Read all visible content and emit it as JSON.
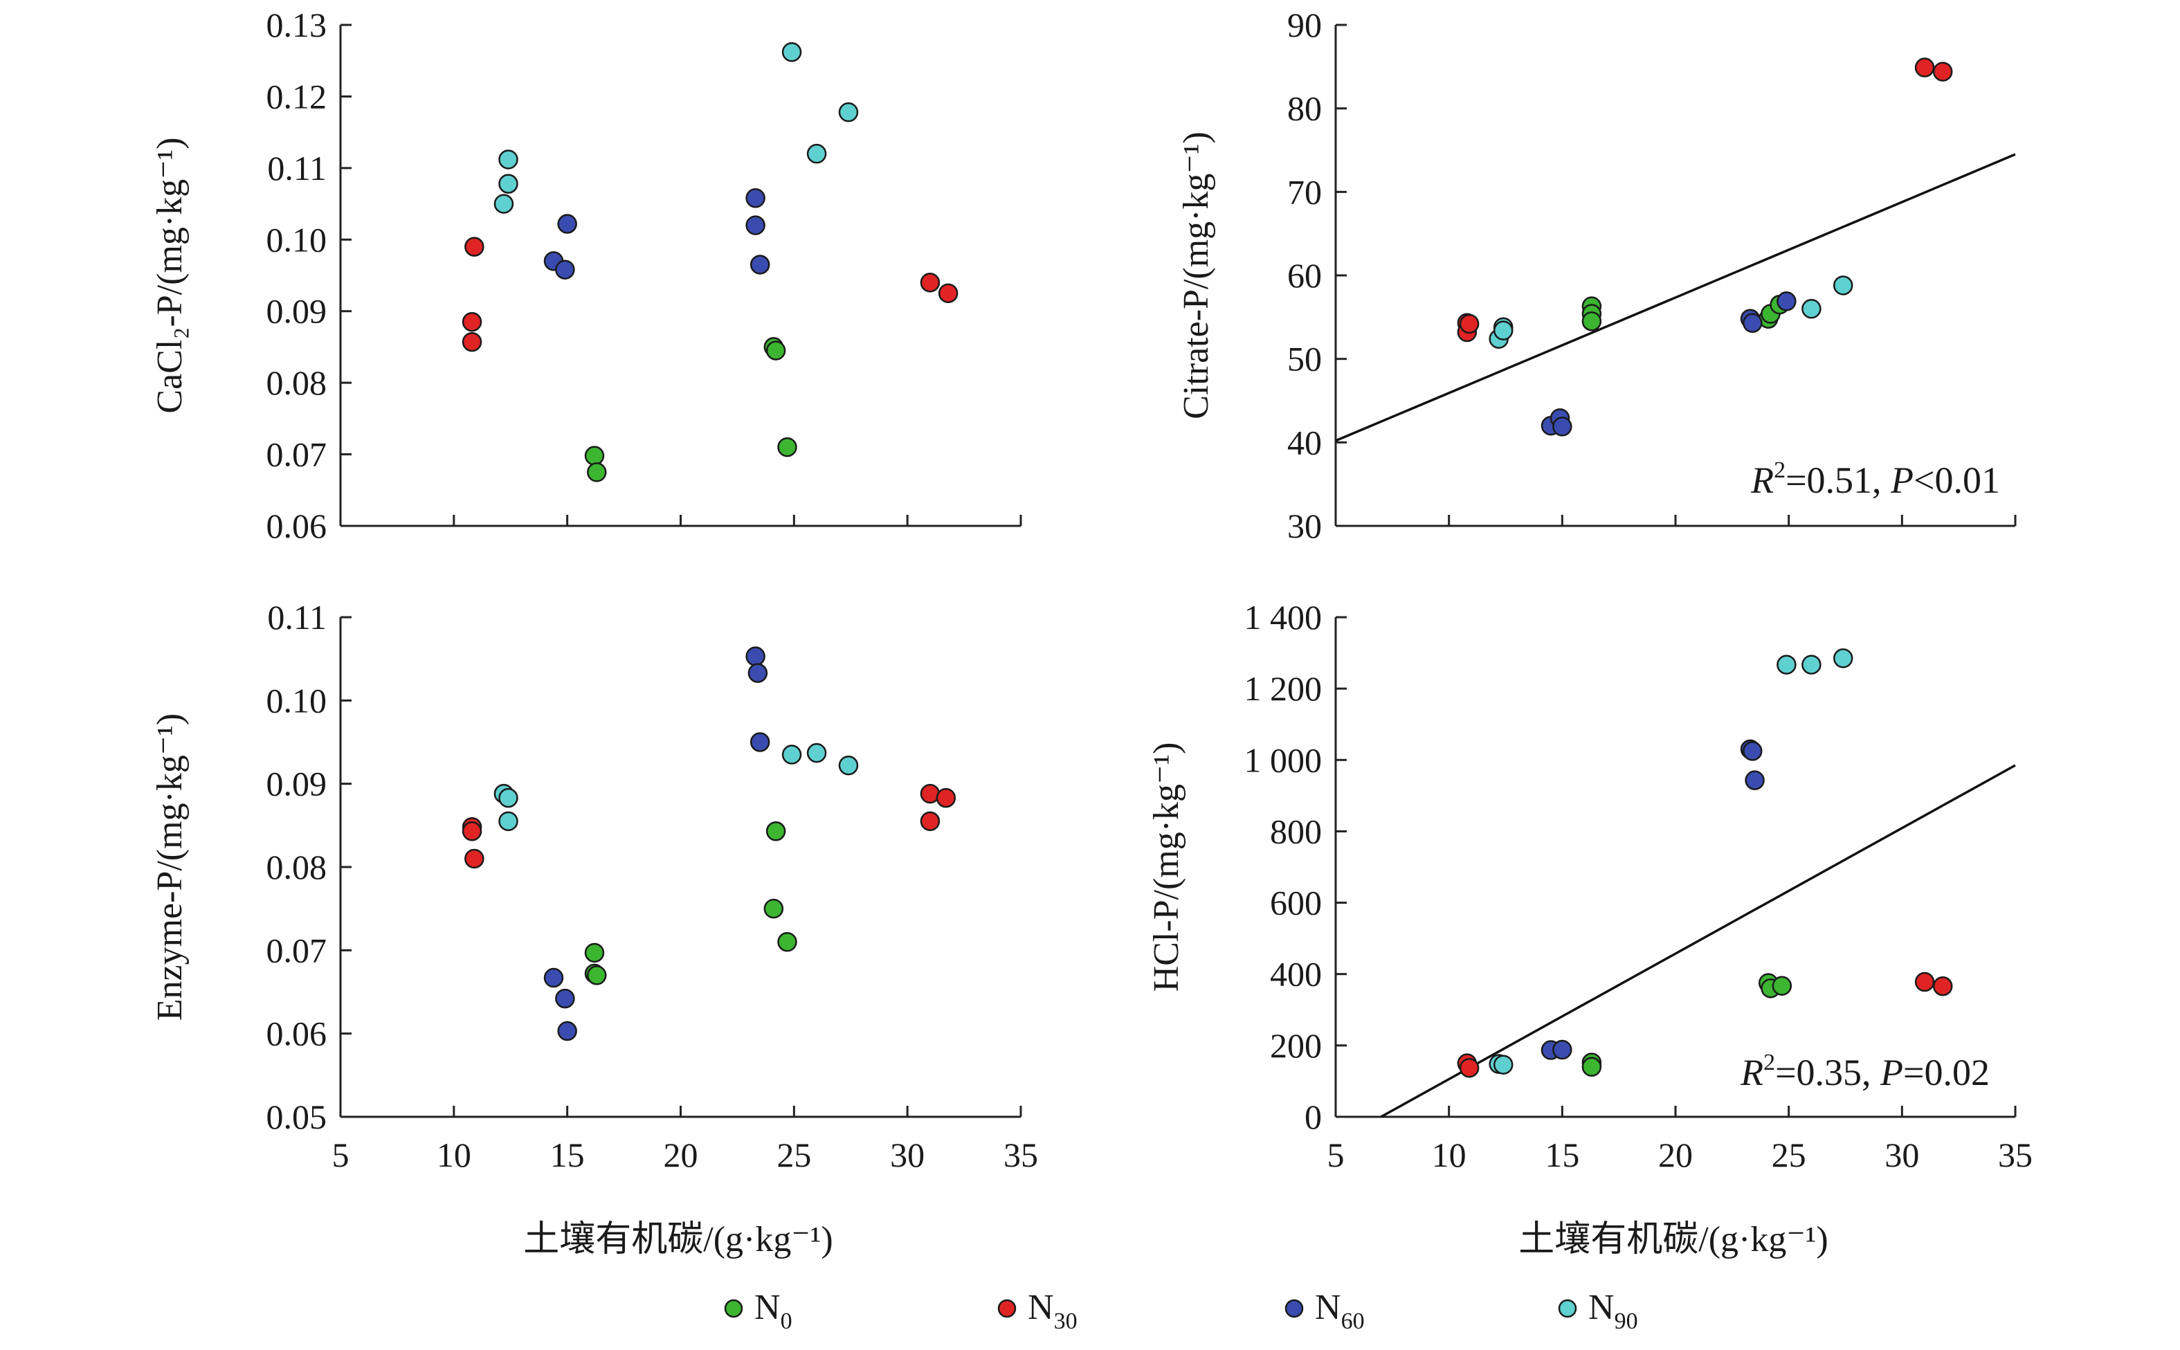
{
  "colors": {
    "N0": "#3cb531",
    "N30": "#e02424",
    "N60": "#3a4cb0",
    "N90": "#5fd0d0"
  },
  "legend": [
    {
      "key": "N0",
      "base": "N",
      "sub": "0"
    },
    {
      "key": "N30",
      "base": "N",
      "sub": "30"
    },
    {
      "key": "N60",
      "base": "N",
      "sub": "60"
    },
    {
      "key": "N90",
      "base": "N",
      "sub": "90"
    }
  ],
  "shared_xlabel": "土壤有机碳/(g·kg⁻¹)",
  "chart_data": [
    {
      "id": "cacl2",
      "type": "scatter",
      "ylabel": "CaCl₂-P/(mg·kg⁻¹)",
      "xlim": [
        5,
        35
      ],
      "ylim": [
        0.06,
        0.13
      ],
      "xticks": [
        5,
        10,
        15,
        20,
        25,
        30,
        35
      ],
      "xtick_labels": [
        "5",
        "10",
        "15",
        "20",
        "25",
        "30",
        "35"
      ],
      "yticks": [
        0.06,
        0.07,
        0.08,
        0.09,
        0.1,
        0.11,
        0.12,
        0.13
      ],
      "ytick_labels": [
        "0.06",
        "0.07",
        "0.08",
        "0.09",
        "0.10",
        "0.11",
        "0.12",
        "0.13"
      ],
      "show_x_tick_labels": false,
      "show_x_title": false,
      "series": [
        {
          "key": "N0",
          "points": [
            [
              16.2,
              0.0698
            ],
            [
              16.3,
              0.0675
            ],
            [
              24.1,
              0.085
            ],
            [
              24.2,
              0.0845
            ],
            [
              24.7,
              0.071
            ]
          ]
        },
        {
          "key": "N30",
          "points": [
            [
              10.8,
              0.0885
            ],
            [
              10.8,
              0.0857
            ],
            [
              10.9,
              0.099
            ],
            [
              31.0,
              0.094
            ],
            [
              31.8,
              0.0925
            ]
          ]
        },
        {
          "key": "N60",
          "points": [
            [
              14.4,
              0.097
            ],
            [
              14.9,
              0.0958
            ],
            [
              15.0,
              0.1022
            ],
            [
              23.3,
              0.1058
            ],
            [
              23.3,
              0.102
            ],
            [
              23.5,
              0.0965
            ]
          ]
        },
        {
          "key": "N90",
          "points": [
            [
              12.2,
              0.105
            ],
            [
              12.4,
              0.1078
            ],
            [
              12.4,
              0.1112
            ],
            [
              24.9,
              0.1262
            ],
            [
              26.0,
              0.112
            ],
            [
              27.4,
              0.1178
            ]
          ]
        }
      ]
    },
    {
      "id": "citrate",
      "type": "scatter",
      "ylabel": "Citrate-P/(mg·kg⁻¹)",
      "xlim": [
        5,
        35
      ],
      "ylim": [
        30,
        90
      ],
      "xticks": [
        5,
        10,
        15,
        20,
        25,
        30,
        35
      ],
      "xtick_labels": [
        "5",
        "10",
        "15",
        "20",
        "25",
        "30",
        "35"
      ],
      "yticks": [
        30,
        40,
        50,
        60,
        70,
        80,
        90
      ],
      "ytick_labels": [
        "30",
        "40",
        "50",
        "60",
        "70",
        "80",
        "90"
      ],
      "show_x_tick_labels": false,
      "show_x_title": false,
      "fit": {
        "x": [
          5,
          35
        ],
        "y": [
          40.2,
          74.5
        ]
      },
      "stat": {
        "r": "R",
        "r_exp": "2",
        "text1": "=0.51, ",
        "p": "P",
        "text2": "<0.01"
      },
      "series": [
        {
          "key": "N0",
          "points": [
            [
              16.3,
              56.3
            ],
            [
              16.3,
              55.4
            ],
            [
              16.3,
              54.5
            ],
            [
              24.1,
              54.8
            ],
            [
              24.2,
              55.4
            ],
            [
              24.6,
              56.5
            ]
          ]
        },
        {
          "key": "N30",
          "points": [
            [
              10.8,
              54.3
            ],
            [
              10.8,
              53.2
            ],
            [
              10.9,
              54.2
            ],
            [
              31.0,
              84.9
            ],
            [
              31.8,
              84.4
            ]
          ]
        },
        {
          "key": "N60",
          "points": [
            [
              14.5,
              42.0
            ],
            [
              14.9,
              42.9
            ],
            [
              15.0,
              41.9
            ],
            [
              23.3,
              54.8
            ],
            [
              23.4,
              54.3
            ],
            [
              24.9,
              56.9
            ]
          ]
        },
        {
          "key": "N90",
          "points": [
            [
              12.2,
              52.4
            ],
            [
              12.4,
              53.8
            ],
            [
              12.4,
              53.4
            ],
            [
              26.0,
              56.0
            ],
            [
              27.4,
              58.8
            ]
          ]
        }
      ]
    },
    {
      "id": "enzyme",
      "type": "scatter",
      "ylabel": "Enzyme-P/(mg·kg⁻¹)",
      "xlim": [
        5,
        35
      ],
      "ylim": [
        0.05,
        0.11
      ],
      "xticks": [
        5,
        10,
        15,
        20,
        25,
        30,
        35
      ],
      "xtick_labels": [
        "5",
        "10",
        "15",
        "20",
        "25",
        "30",
        "35"
      ],
      "yticks": [
        0.05,
        0.06,
        0.07,
        0.08,
        0.09,
        0.1,
        0.11
      ],
      "ytick_labels": [
        "0.05",
        "0.06",
        "0.07",
        "0.08",
        "0.09",
        "0.10",
        "0.11"
      ],
      "show_x_tick_labels": true,
      "show_x_title": true,
      "series": [
        {
          "key": "N0",
          "points": [
            [
              16.2,
              0.0697
            ],
            [
              16.2,
              0.0672
            ],
            [
              16.3,
              0.067
            ],
            [
              24.1,
              0.075
            ],
            [
              24.2,
              0.0843
            ],
            [
              24.7,
              0.071
            ]
          ]
        },
        {
          "key": "N30",
          "points": [
            [
              10.8,
              0.0848
            ],
            [
              10.8,
              0.0843
            ],
            [
              10.9,
              0.081
            ],
            [
              31.0,
              0.0888
            ],
            [
              31.0,
              0.0855
            ],
            [
              31.7,
              0.0883
            ]
          ]
        },
        {
          "key": "N60",
          "points": [
            [
              14.4,
              0.0667
            ],
            [
              14.9,
              0.0642
            ],
            [
              15.0,
              0.0603
            ],
            [
              23.3,
              0.1053
            ],
            [
              23.4,
              0.1033
            ],
            [
              23.5,
              0.095
            ]
          ]
        },
        {
          "key": "N90",
          "points": [
            [
              12.2,
              0.0888
            ],
            [
              12.4,
              0.0883
            ],
            [
              12.4,
              0.0855
            ],
            [
              24.9,
              0.0935
            ],
            [
              26.0,
              0.0937
            ],
            [
              27.4,
              0.0922
            ]
          ]
        }
      ]
    },
    {
      "id": "hcl",
      "type": "scatter",
      "ylabel": "HCl-P/(mg·kg⁻¹)",
      "xlim": [
        5,
        35
      ],
      "ylim": [
        0,
        1400
      ],
      "xticks": [
        5,
        10,
        15,
        20,
        25,
        30,
        35
      ],
      "xtick_labels": [
        "5",
        "10",
        "15",
        "20",
        "25",
        "30",
        "35"
      ],
      "yticks": [
        0,
        200,
        400,
        600,
        800,
        1000,
        1200,
        1400
      ],
      "ytick_labels": [
        "0",
        "200",
        "400",
        "600",
        "800",
        "1 000",
        "1 200",
        "1 400"
      ],
      "show_x_tick_labels": true,
      "show_x_title": true,
      "fit": {
        "x": [
          7.0,
          35
        ],
        "y": [
          0,
          985
        ]
      },
      "stat": {
        "r": "R",
        "r_exp": "2",
        "text1": "=0.35, ",
        "p": "P",
        "text2": "=0.02"
      },
      "series": [
        {
          "key": "N0",
          "points": [
            [
              16.3,
              152
            ],
            [
              16.3,
              140
            ],
            [
              24.1,
              375
            ],
            [
              24.2,
              360
            ],
            [
              24.7,
              367
            ]
          ]
        },
        {
          "key": "N30",
          "points": [
            [
              10.8,
              150
            ],
            [
              10.9,
              137
            ],
            [
              31.0,
              378
            ],
            [
              31.8,
              366
            ]
          ]
        },
        {
          "key": "N60",
          "points": [
            [
              14.5,
              187
            ],
            [
              15.0,
              188
            ],
            [
              23.3,
              1030
            ],
            [
              23.4,
              1025
            ],
            [
              23.5,
              943
            ]
          ]
        },
        {
          "key": "N90",
          "points": [
            [
              12.2,
              148
            ],
            [
              12.4,
              146
            ],
            [
              24.9,
              1267
            ],
            [
              26.0,
              1267
            ],
            [
              27.4,
              1285
            ]
          ]
        }
      ]
    }
  ]
}
